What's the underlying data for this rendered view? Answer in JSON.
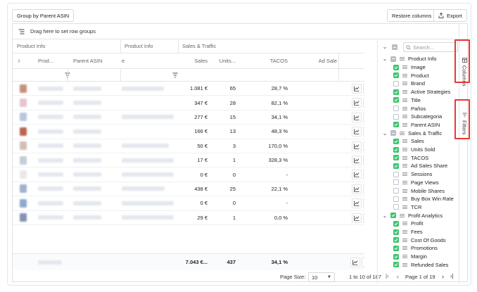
{
  "toolbar": {
    "group_label": "Group by Parent ASIN",
    "restore_label": "Restore columns",
    "export_label": "Export"
  },
  "grid": {
    "drag_hint": "Drag here to set row groups",
    "group_headers": [
      "Product Info",
      "Product Info",
      "Sales & Traffic"
    ],
    "columns": [
      "I",
      "Prod...",
      "Parent ASIN",
      "e",
      "Sales",
      "Units...",
      "TACOS",
      "Ad Sale"
    ],
    "rows": [
      {
        "sales": "1.081 €",
        "units": "65",
        "tacos": "28,7 %",
        "thumb": "#c98f7d"
      },
      {
        "sales": "347 €",
        "units": "28",
        "tacos": "82,1 %",
        "thumb": "#e8c4cf"
      },
      {
        "sales": "277 €",
        "units": "15",
        "tacos": "34,1 %",
        "thumb": "#b7c7de"
      },
      {
        "sales": "166 €",
        "units": "13",
        "tacos": "48,3 %",
        "thumb": "#b9664f"
      },
      {
        "sales": "50 €",
        "units": "3",
        "tacos": "170,0 %",
        "thumb": "#d4bfb4"
      },
      {
        "sales": "17 €",
        "units": "1",
        "tacos": "328,3 %",
        "thumb": "#c4ccd8"
      },
      {
        "sales": "0 €",
        "units": "0",
        "tacos": "-",
        "thumb": "#ece8e8"
      },
      {
        "sales": "438 €",
        "units": "25",
        "tacos": "22,1 %",
        "thumb": "#9fb3d0"
      },
      {
        "sales": "0 €",
        "units": "0",
        "tacos": "-",
        "thumb": "#8ea9cf"
      },
      {
        "sales": "29 €",
        "units": "1",
        "tacos": "0,0 %",
        "thumb": "#8593b3"
      }
    ],
    "totals": {
      "sales": "7.043 €...",
      "units": "437",
      "tacos": "34,1 %"
    }
  },
  "pagination": {
    "page_size_label": "Page Size:",
    "page_size_value": "10",
    "range": "1 to 10 of 187",
    "page_label": "Page 1 of 19"
  },
  "columns_panel": {
    "search_placeholder": "Search...",
    "items": [
      {
        "label": "Product Info",
        "group": true,
        "state": "part"
      },
      {
        "label": "Image",
        "state": "on"
      },
      {
        "label": "Product",
        "state": "on"
      },
      {
        "label": "Brand",
        "state": "off"
      },
      {
        "label": "Active Strategies",
        "state": "on"
      },
      {
        "label": "Title",
        "state": "on"
      },
      {
        "label": "Paños",
        "state": "off"
      },
      {
        "label": "Subcategoria",
        "state": "off"
      },
      {
        "label": "Parent ASIN",
        "state": "on"
      },
      {
        "label": "Sales & Traffic",
        "group": true,
        "state": "part"
      },
      {
        "label": "Sales",
        "state": "on"
      },
      {
        "label": "Units Sold",
        "state": "on"
      },
      {
        "label": "TACOS",
        "state": "on"
      },
      {
        "label": "Ad Sales Share",
        "state": "on"
      },
      {
        "label": "Sessions",
        "state": "off"
      },
      {
        "label": "Page Views",
        "state": "off"
      },
      {
        "label": "Mobile Shares",
        "state": "off"
      },
      {
        "label": "Buy Box Win Rate",
        "state": "off"
      },
      {
        "label": "TCR",
        "state": "off"
      },
      {
        "label": "Profit Analytics",
        "group": true,
        "state": "on"
      },
      {
        "label": "Profit",
        "state": "on"
      },
      {
        "label": "Fees",
        "state": "on"
      },
      {
        "label": "Cost Of Goods",
        "state": "on"
      },
      {
        "label": "Promotions",
        "state": "on"
      },
      {
        "label": "Margin",
        "state": "on"
      },
      {
        "label": "Refunded Sales",
        "state": "on"
      }
    ]
  },
  "side_tabs": {
    "columns": "Columns",
    "filters": "Filters"
  },
  "colors": {
    "check": "#3fc56f",
    "highlight": "#e53935"
  }
}
